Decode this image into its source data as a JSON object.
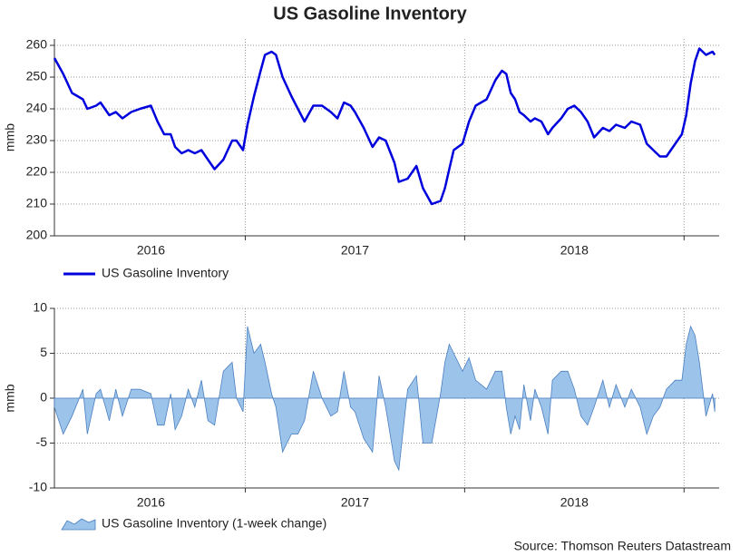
{
  "title": "US Gasoline Inventory",
  "source": "Source: Thomson Reuters Datastream",
  "chart_data": [
    {
      "type": "line",
      "y_label": "mmb",
      "xlim": [
        2016.13,
        2019.16
      ],
      "xticks": [
        2017,
        2018,
        2019
      ],
      "year_labels": [
        {
          "value": 2016.57,
          "label": "2016"
        },
        {
          "value": 2017.5,
          "label": "2017"
        },
        {
          "value": 2018.5,
          "label": "2018"
        }
      ],
      "ylim": [
        200,
        262
      ],
      "yticks": [
        200,
        210,
        220,
        230,
        240,
        250,
        260
      ],
      "grid": true,
      "x": [
        2016.13,
        2016.17,
        2016.21,
        2016.26,
        2016.28,
        2016.32,
        2016.34,
        2016.38,
        2016.41,
        2016.44,
        2016.48,
        2016.52,
        2016.57,
        2016.6,
        2016.63,
        2016.66,
        2016.68,
        2016.71,
        2016.74,
        2016.77,
        2016.8,
        2016.83,
        2016.86,
        2016.9,
        2016.94,
        2016.96,
        2016.99,
        2017.01,
        2017.04,
        2017.07,
        2017.09,
        2017.12,
        2017.14,
        2017.17,
        2017.21,
        2017.24,
        2017.27,
        2017.31,
        2017.35,
        2017.39,
        2017.42,
        2017.45,
        2017.48,
        2017.5,
        2017.54,
        2017.58,
        2017.61,
        2017.64,
        2017.68,
        2017.7,
        2017.74,
        2017.78,
        2017.81,
        2017.85,
        2017.89,
        2017.91,
        2017.93,
        2017.95,
        2017.99,
        2018.02,
        2018.05,
        2018.1,
        2018.14,
        2018.17,
        2018.19,
        2018.21,
        2018.23,
        2018.25,
        2018.27,
        2018.3,
        2018.32,
        2018.35,
        2018.38,
        2018.4,
        2018.44,
        2018.47,
        2018.5,
        2018.53,
        2018.56,
        2018.59,
        2018.63,
        2018.66,
        2018.69,
        2018.73,
        2018.76,
        2018.8,
        2018.83,
        2018.86,
        2018.89,
        2018.92,
        2018.96,
        2018.99,
        2019.01,
        2019.03,
        2019.05,
        2019.07,
        2019.1,
        2019.13,
        2019.14
      ],
      "series": [
        {
          "name": "US Gasoline Inventory",
          "color": "#0000dd",
          "values": [
            256,
            251,
            245,
            243,
            240,
            241,
            242,
            238,
            239,
            237,
            239,
            240,
            241,
            236,
            232,
            232,
            228,
            226,
            227,
            226,
            227,
            224,
            221,
            224,
            230,
            230,
            227,
            235,
            244,
            252,
            257,
            258,
            257,
            250,
            244,
            240,
            236,
            241,
            241,
            239,
            237,
            242,
            241,
            239,
            234,
            228,
            231,
            230,
            223,
            217,
            218,
            222,
            215,
            210,
            211,
            215,
            221,
            227,
            229,
            236,
            241,
            243,
            249,
            252,
            251,
            245,
            243,
            239,
            238,
            236,
            237,
            236,
            232,
            234,
            237,
            240,
            241,
            239,
            236,
            231,
            234,
            233,
            235,
            234,
            236,
            235,
            229,
            227,
            225,
            225,
            229,
            232,
            238,
            248,
            255,
            259,
            257,
            258,
            257
          ]
        }
      ]
    },
    {
      "type": "area",
      "y_label": "mmb",
      "xlim": [
        2016.13,
        2019.16
      ],
      "xticks": [
        2017,
        2018,
        2019
      ],
      "year_labels": [
        {
          "value": 2016.57,
          "label": "2016"
        },
        {
          "value": 2017.5,
          "label": "2017"
        },
        {
          "value": 2018.5,
          "label": "2018"
        }
      ],
      "ylim": [
        -10,
        10
      ],
      "yticks": [
        -10,
        -5,
        0,
        5,
        10
      ],
      "grid": true,
      "x": [
        2016.13,
        2016.17,
        2016.21,
        2016.26,
        2016.28,
        2016.32,
        2016.34,
        2016.38,
        2016.41,
        2016.44,
        2016.48,
        2016.52,
        2016.57,
        2016.6,
        2016.63,
        2016.66,
        2016.68,
        2016.71,
        2016.74,
        2016.77,
        2016.8,
        2016.83,
        2016.86,
        2016.9,
        2016.94,
        2016.96,
        2016.99,
        2017.01,
        2017.04,
        2017.07,
        2017.09,
        2017.12,
        2017.14,
        2017.17,
        2017.21,
        2017.24,
        2017.27,
        2017.31,
        2017.35,
        2017.39,
        2017.42,
        2017.45,
        2017.48,
        2017.5,
        2017.54,
        2017.58,
        2017.61,
        2017.64,
        2017.68,
        2017.7,
        2017.74,
        2017.78,
        2017.81,
        2017.85,
        2017.89,
        2017.91,
        2017.93,
        2017.95,
        2017.99,
        2018.02,
        2018.05,
        2018.1,
        2018.14,
        2018.17,
        2018.19,
        2018.21,
        2018.23,
        2018.25,
        2018.27,
        2018.3,
        2018.32,
        2018.35,
        2018.38,
        2018.4,
        2018.44,
        2018.47,
        2018.5,
        2018.53,
        2018.56,
        2018.59,
        2018.63,
        2018.66,
        2018.69,
        2018.73,
        2018.76,
        2018.8,
        2018.83,
        2018.86,
        2018.89,
        2018.92,
        2018.96,
        2018.99,
        2019.01,
        2019.03,
        2019.05,
        2019.07,
        2019.1,
        2019.13,
        2019.14
      ],
      "series": [
        {
          "name": "US Gasoline Inventory (1-week change)",
          "color": "#9cc3ea",
          "values": [
            -1,
            -4,
            -2,
            1,
            -4,
            0.5,
            1,
            -2.5,
            1,
            -2,
            1,
            1,
            0.5,
            -3,
            -3,
            0.5,
            -3.5,
            -2,
            1,
            -1,
            2,
            -2.5,
            -3,
            3,
            4,
            0,
            -1.5,
            8,
            5,
            6,
            4,
            0.5,
            -1,
            -6,
            -4,
            -4,
            -2.5,
            3,
            0,
            -2,
            -1.5,
            3,
            -1,
            -1.5,
            -4.5,
            -6,
            2.5,
            -1,
            -7,
            -8,
            1,
            2.5,
            -5,
            -5,
            0.5,
            4,
            6,
            5,
            3,
            4.5,
            2,
            1,
            3,
            3,
            -1,
            -4,
            -2,
            -3.5,
            1.5,
            -2.5,
            1,
            -1,
            -4,
            2,
            3,
            3,
            1,
            -2,
            -3,
            -1,
            2,
            -1,
            1.5,
            -1,
            1,
            -1,
            -4,
            -2,
            -1,
            1,
            2,
            2,
            6,
            8,
            7,
            4,
            -2,
            0.5,
            -1.5
          ]
        }
      ]
    }
  ]
}
